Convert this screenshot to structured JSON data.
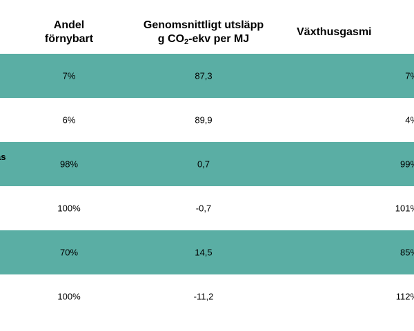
{
  "headers": {
    "andel_line1": "Andel",
    "andel_line2": "förnybart",
    "utslapp_line1": "Genomsnittligt utsläpp",
    "utslapp_line2_pre": "g CO",
    "utslapp_line2_sub": "2",
    "utslapp_line2_post": "-ekv per MJ",
    "vaxthus": "Växthusgasmi"
  },
  "rows": [
    {
      "label": "",
      "andel": "7%",
      "utslapp": "87,3",
      "vaxthus": "7%",
      "shaded": true
    },
    {
      "label": "",
      "andel": "6%",
      "utslapp": "89,9",
      "vaxthus": "4%",
      "shaded": false
    },
    {
      "label": "as",
      "andel": "98%",
      "utslapp": "0,7",
      "vaxthus": "99%",
      "shaded": true
    },
    {
      "label": "",
      "andel": "100%",
      "utslapp": "-0,7",
      "vaxthus": "101%",
      "shaded": false
    },
    {
      "label": "",
      "andel": "70%",
      "utslapp": "14,5",
      "vaxthus": "85%",
      "shaded": true
    },
    {
      "label": "",
      "andel": "100%",
      "utslapp": "-11,2",
      "vaxthus": "112%",
      "shaded": false
    }
  ],
  "colors": {
    "shaded_row": "#5aaea4",
    "plain_row": "#ffffff"
  }
}
